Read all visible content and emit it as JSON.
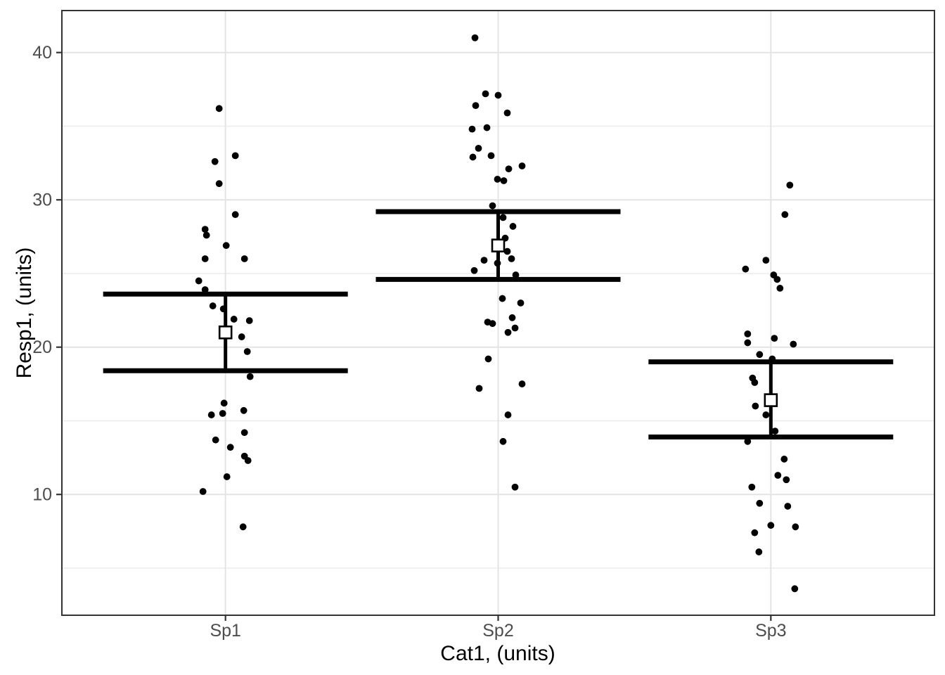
{
  "figure": {
    "background": "#ffffff"
  },
  "chart_data": {
    "type": "scatter",
    "subtype": "jitter-with-mean-errorbars",
    "title": "",
    "xlabel": "Cat1, (units)",
    "ylabel": "Resp1, (units)",
    "categories": [
      "Sp1",
      "Sp2",
      "Sp3"
    ],
    "ylim": [
      1.8,
      42.85
    ],
    "y_major_ticks": [
      10,
      20,
      30,
      40
    ],
    "y_tick_labels": [
      "10",
      "20",
      "30",
      "40"
    ],
    "y_minor_ticks": [
      5,
      15,
      25,
      35
    ],
    "grid": true,
    "legend": "none",
    "colors": {
      "point": "#000000",
      "errorbar": "#000000",
      "mean_fill": "#ffffff",
      "mean_stroke": "#000000",
      "grid_major": "#e4e4e4",
      "grid_minor": "#ececec",
      "panel_border": "#333333",
      "tick_mark": "#333333",
      "tick_label": "#4d4d4d",
      "axis_title": "#000000"
    },
    "series": [
      {
        "name": "Sp1",
        "summary": {
          "mean": 21.0,
          "upper": 23.6,
          "lower": 18.4
        },
        "points": [
          [
            -9,
            36.2
          ],
          [
            14,
            33.0
          ],
          [
            -15,
            32.6
          ],
          [
            -9,
            31.1
          ],
          [
            14,
            29.0
          ],
          [
            -29,
            28.0
          ],
          [
            -27,
            27.6
          ],
          [
            1,
            26.9
          ],
          [
            -29,
            26.0
          ],
          [
            27,
            26.0
          ],
          [
            -38,
            24.5
          ],
          [
            -29,
            23.9
          ],
          [
            -18,
            22.8
          ],
          [
            -3,
            22.6
          ],
          [
            12,
            21.9
          ],
          [
            34,
            21.8
          ],
          [
            23,
            20.7
          ],
          [
            31,
            19.7
          ],
          [
            35,
            18.0
          ],
          [
            -2,
            16.2
          ],
          [
            -20,
            15.4
          ],
          [
            -4,
            15.5
          ],
          [
            26,
            15.7
          ],
          [
            27,
            14.2
          ],
          [
            -14,
            13.7
          ],
          [
            7,
            13.2
          ],
          [
            27,
            12.6
          ],
          [
            32,
            12.3
          ],
          [
            2,
            11.2
          ],
          [
            -32,
            10.2
          ],
          [
            25,
            7.8
          ]
        ]
      },
      {
        "name": "Sp2",
        "summary": {
          "mean": 26.9,
          "upper": 29.2,
          "lower": 24.6
        },
        "points": [
          [
            -33,
            41.0
          ],
          [
            -18,
            37.2
          ],
          [
            0,
            37.1
          ],
          [
            -32,
            36.4
          ],
          [
            13,
            35.9
          ],
          [
            -16,
            34.9
          ],
          [
            -37,
            34.8
          ],
          [
            -28,
            33.5
          ],
          [
            -10,
            33.0
          ],
          [
            -36,
            32.9
          ],
          [
            34,
            32.3
          ],
          [
            15,
            32.1
          ],
          [
            -1,
            31.4
          ],
          [
            8,
            31.3
          ],
          [
            -8,
            29.6
          ],
          [
            7,
            28.8
          ],
          [
            21,
            28.2
          ],
          [
            10,
            27.4
          ],
          [
            13,
            26.5
          ],
          [
            19,
            26.0
          ],
          [
            -20,
            25.9
          ],
          [
            -1,
            25.7
          ],
          [
            -34,
            25.2
          ],
          [
            25,
            24.9
          ],
          [
            6,
            23.3
          ],
          [
            32,
            23.0
          ],
          [
            20,
            22.0
          ],
          [
            -15,
            21.7
          ],
          [
            -8,
            21.6
          ],
          [
            24,
            21.3
          ],
          [
            14,
            21.0
          ],
          [
            -14,
            19.2
          ],
          [
            34,
            17.5
          ],
          [
            -27,
            17.2
          ],
          [
            14,
            15.4
          ],
          [
            7,
            13.6
          ],
          [
            24,
            10.5
          ]
        ]
      },
      {
        "name": "Sp3",
        "summary": {
          "mean": 16.4,
          "upper": 19.0,
          "lower": 13.9
        },
        "points": [
          [
            27,
            31.0
          ],
          [
            20,
            29.0
          ],
          [
            -7,
            25.9
          ],
          [
            -36,
            25.3
          ],
          [
            4,
            24.9
          ],
          [
            9,
            24.6
          ],
          [
            13,
            24.0
          ],
          [
            -33,
            20.9
          ],
          [
            5,
            20.6
          ],
          [
            -33,
            20.3
          ],
          [
            32,
            20.2
          ],
          [
            -16,
            19.5
          ],
          [
            2,
            19.2
          ],
          [
            -26,
            17.9
          ],
          [
            -23,
            17.6
          ],
          [
            -22,
            16.0
          ],
          [
            -7,
            15.4
          ],
          [
            6,
            14.3
          ],
          [
            -33,
            13.6
          ],
          [
            19,
            12.4
          ],
          [
            10,
            11.3
          ],
          [
            22,
            11.0
          ],
          [
            -27,
            10.5
          ],
          [
            -16,
            9.4
          ],
          [
            24,
            9.2
          ],
          [
            0,
            7.9
          ],
          [
            35,
            7.8
          ],
          [
            -23,
            7.4
          ],
          [
            -17,
            6.1
          ],
          [
            34,
            3.6
          ]
        ]
      }
    ]
  }
}
